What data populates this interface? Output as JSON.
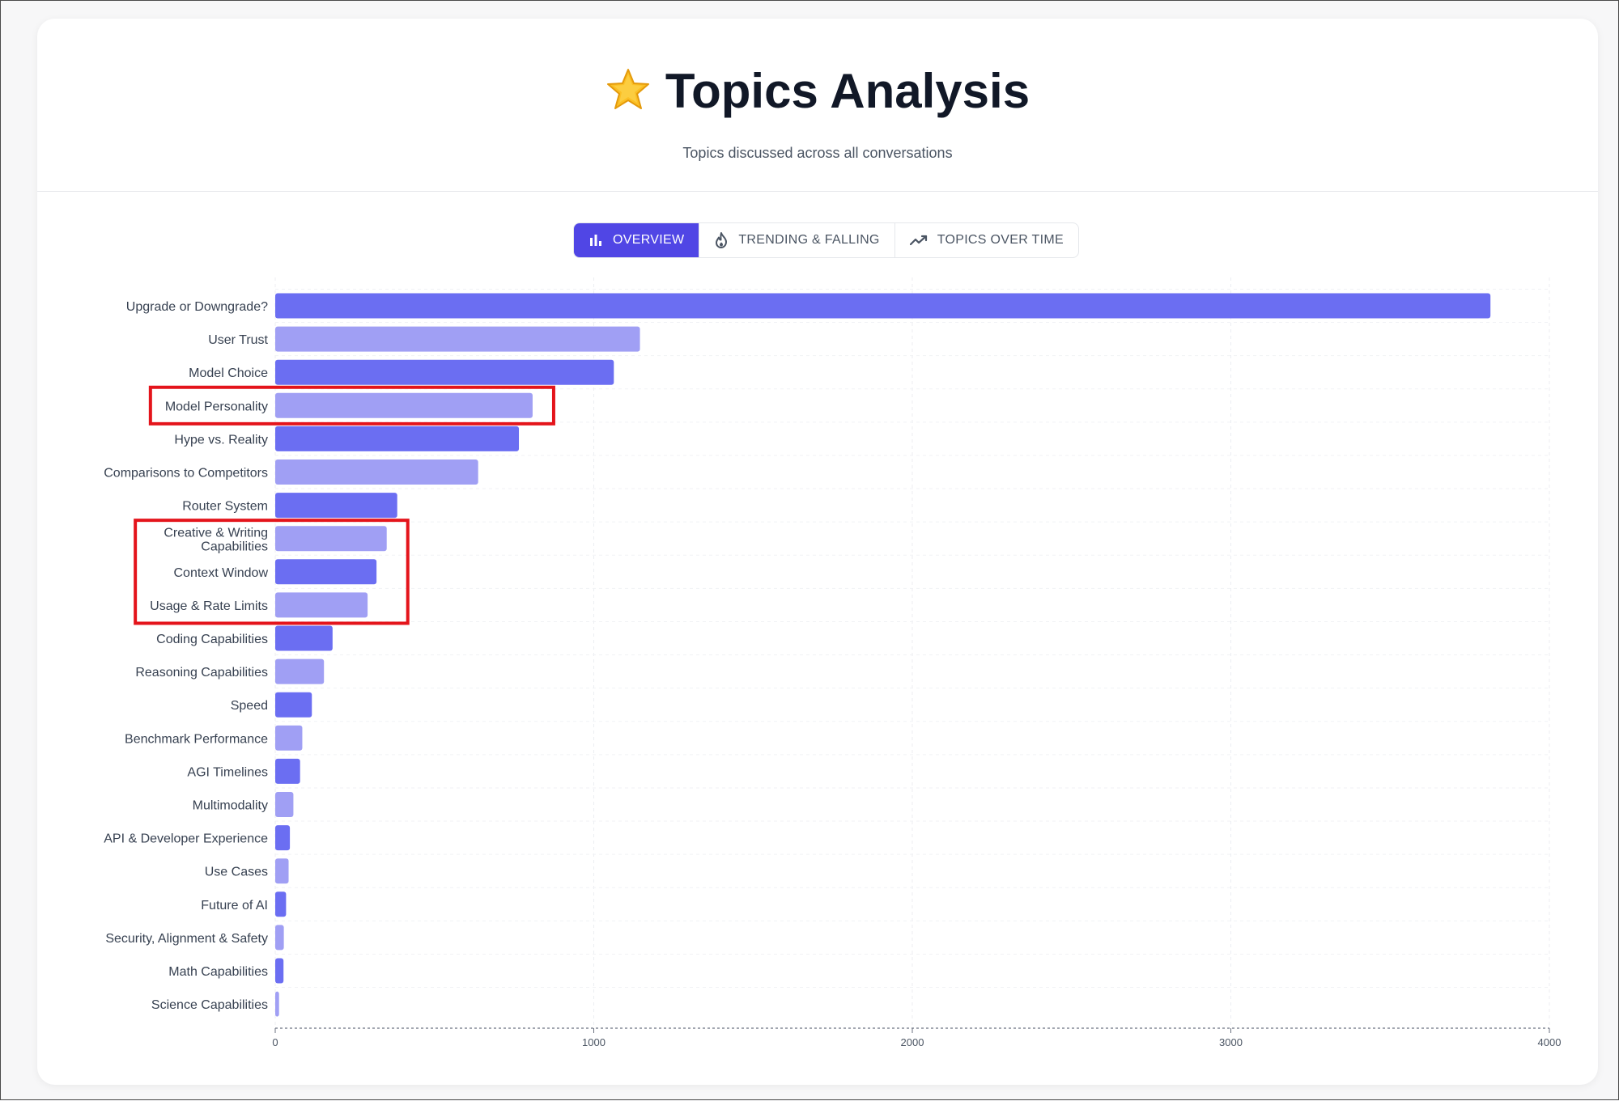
{
  "header": {
    "title": "Topics Analysis",
    "title_icon": "star-icon",
    "subtitle": "Topics discussed across all conversations"
  },
  "tabs": [
    {
      "label": "OVERVIEW",
      "icon": "bar-chart-icon",
      "active": true
    },
    {
      "label": "TRENDING & FALLING",
      "icon": "flame-icon",
      "active": false
    },
    {
      "label": "TOPICS OVER TIME",
      "icon": "trend-line-icon",
      "active": false
    }
  ],
  "colors": {
    "accent": "#5046e5",
    "bar_dark": "#6b6ef2",
    "bar_light": "#a09ff4",
    "highlight_box": "#e4141b"
  },
  "chart_data": {
    "type": "bar",
    "orientation": "horizontal",
    "categories": [
      "Upgrade or Downgrade?",
      "User Trust",
      "Model Choice",
      "Model Personality",
      "Hype vs. Reality",
      "Comparisons to Competitors",
      "Router System",
      "Creative & Writing Capabilities",
      "Context Window",
      "Usage & Rate Limits",
      "Coding Capabilities",
      "Reasoning Capabilities",
      "Speed",
      "Benchmark Performance",
      "AGI Timelines",
      "Multimodality",
      "API & Developer Experience",
      "Use Cases",
      "Future of AI",
      "Security, Alignment & Safety",
      "Math Capabilities",
      "Science Capabilities"
    ],
    "values": [
      3815,
      1145,
      1063,
      808,
      765,
      637,
      383,
      350,
      318,
      290,
      180,
      153,
      115,
      85,
      78,
      57,
      46,
      42,
      34,
      27,
      26,
      12
    ],
    "xlim": [
      0,
      4000
    ],
    "xticks": [
      "0",
      "1000",
      "2000",
      "3000",
      "4000"
    ],
    "grid": true,
    "highlighted_categories": [
      [
        "Model Personality"
      ],
      [
        "Creative & Writing Capabilities",
        "Context Window",
        "Usage & Rate Limits"
      ]
    ]
  }
}
